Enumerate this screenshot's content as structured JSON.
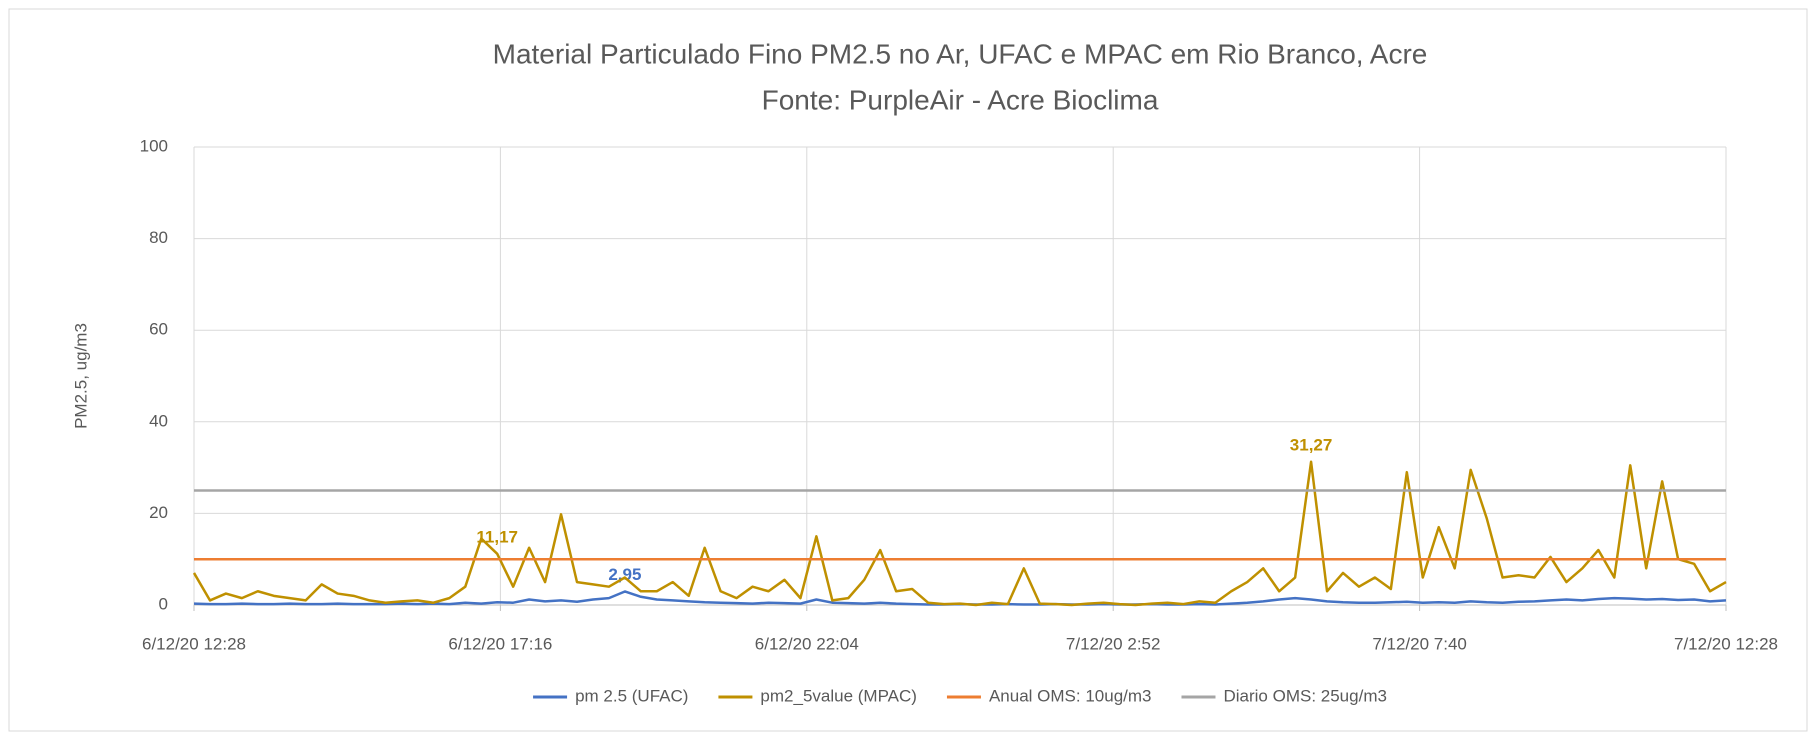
{
  "chart_data": {
    "type": "line",
    "title": "Material Particulado Fino PM2.5 no Ar,  UFAC e  MPAC em Rio Branco, Acre",
    "subtitle": "Fonte: PurpleAir - Acre Bioclima",
    "y_label": "PM2.5, ug/m3",
    "x": [
      "2020-12-06 12:28",
      "2020-12-06 12:43",
      "2020-12-06 12:58",
      "2020-12-06 13:13",
      "2020-12-06 13:28",
      "2020-12-06 13:43",
      "2020-12-06 13:58",
      "2020-12-06 14:13",
      "2020-12-06 14:28",
      "2020-12-06 14:43",
      "2020-12-06 14:58",
      "2020-12-06 15:13",
      "2020-12-06 15:28",
      "2020-12-06 15:43",
      "2020-12-06 15:58",
      "2020-12-06 16:13",
      "2020-12-06 16:28",
      "2020-12-06 16:43",
      "2020-12-06 16:58",
      "2020-12-06 17:13",
      "2020-12-06 17:28",
      "2020-12-06 17:43",
      "2020-12-06 17:58",
      "2020-12-06 18:13",
      "2020-12-06 18:28",
      "2020-12-06 18:43",
      "2020-12-06 18:58",
      "2020-12-06 19:13",
      "2020-12-06 19:28",
      "2020-12-06 19:43",
      "2020-12-06 19:58",
      "2020-12-06 20:13",
      "2020-12-06 20:28",
      "2020-12-06 20:43",
      "2020-12-06 20:58",
      "2020-12-06 21:13",
      "2020-12-06 21:28",
      "2020-12-06 21:43",
      "2020-12-06 21:58",
      "2020-12-06 22:13",
      "2020-12-06 22:28",
      "2020-12-06 22:43",
      "2020-12-06 22:58",
      "2020-12-06 23:13",
      "2020-12-06 23:28",
      "2020-12-06 23:43",
      "2020-12-06 23:58",
      "2020-12-07 00:13",
      "2020-12-07 00:28",
      "2020-12-07 00:43",
      "2020-12-07 00:58",
      "2020-12-07 01:13",
      "2020-12-07 01:28",
      "2020-12-07 01:43",
      "2020-12-07 01:58",
      "2020-12-07 02:13",
      "2020-12-07 02:28",
      "2020-12-07 02:43",
      "2020-12-07 02:58",
      "2020-12-07 03:13",
      "2020-12-07 03:28",
      "2020-12-07 03:43",
      "2020-12-07 03:58",
      "2020-12-07 04:13",
      "2020-12-07 04:28",
      "2020-12-07 04:43",
      "2020-12-07 04:58",
      "2020-12-07 05:13",
      "2020-12-07 05:28",
      "2020-12-07 05:43",
      "2020-12-07 05:58",
      "2020-12-07 06:13",
      "2020-12-07 06:28",
      "2020-12-07 06:43",
      "2020-12-07 06:58",
      "2020-12-07 07:13",
      "2020-12-07 07:28",
      "2020-12-07 07:43",
      "2020-12-07 07:58",
      "2020-12-07 08:13",
      "2020-12-07 08:28",
      "2020-12-07 08:43",
      "2020-12-07 08:58",
      "2020-12-07 09:13",
      "2020-12-07 09:28",
      "2020-12-07 09:43",
      "2020-12-07 09:58",
      "2020-12-07 10:13",
      "2020-12-07 10:28",
      "2020-12-07 10:43",
      "2020-12-07 10:58",
      "2020-12-07 11:13",
      "2020-12-07 11:28",
      "2020-12-07 11:43",
      "2020-12-07 11:58",
      "2020-12-07 12:13",
      "2020-12-07 12:28"
    ],
    "series": [
      {
        "name": "pm 2.5 (UFAC)",
        "color": "#4472c4",
        "values": [
          0.3,
          0.2,
          0.2,
          0.3,
          0.2,
          0.2,
          0.3,
          0.2,
          0.2,
          0.3,
          0.2,
          0.2,
          0.2,
          0.3,
          0.2,
          0.3,
          0.2,
          0.5,
          0.3,
          0.6,
          0.5,
          1.2,
          0.8,
          1,
          0.7,
          1.2,
          1.5,
          2.95,
          1.8,
          1.2,
          1,
          0.8,
          0.6,
          0.5,
          0.4,
          0.3,
          0.5,
          0.4,
          0.3,
          1.2,
          0.5,
          0.4,
          0.3,
          0.5,
          0.3,
          0.2,
          0.1,
          0.1,
          0.2,
          0.1,
          0.1,
          0.2,
          0.1,
          0.1,
          0.2,
          0.1,
          0.1,
          0.2,
          0.1,
          0.1,
          0.2,
          0.1,
          0.1,
          0.2,
          0.1,
          0.3,
          0.5,
          0.8,
          1.2,
          1.5,
          1.2,
          0.8,
          0.6,
          0.5,
          0.5,
          0.6,
          0.7,
          0.5,
          0.6,
          0.5,
          0.8,
          0.6,
          0.5,
          0.7,
          0.8,
          1,
          1.2,
          1,
          1.3,
          1.5,
          1.4,
          1.2,
          1.3,
          1.1,
          1.2,
          0.8,
          1
        ],
        "value_labels": {
          "27": "2,95"
        }
      },
      {
        "name": "pm2_5value (MPAC)",
        "color": "#bf9000",
        "values": [
          7,
          1,
          2.5,
          1.5,
          3,
          2,
          1.5,
          1,
          4.5,
          2.5,
          2,
          1,
          0.5,
          0.8,
          1,
          0.5,
          1.5,
          4,
          14.5,
          11.17,
          4,
          12.5,
          5,
          19.8,
          5,
          4.5,
          4,
          6,
          3,
          3,
          5,
          2,
          12.5,
          3,
          1.5,
          4,
          3,
          5.5,
          1.5,
          15,
          1,
          1.5,
          5.5,
          12,
          3,
          3.5,
          0.5,
          0.2,
          0.3,
          0,
          0.5,
          0.2,
          8,
          0.3,
          0.2,
          0,
          0.3,
          0.5,
          0.2,
          0,
          0.3,
          0.5,
          0.2,
          0.8,
          0.5,
          3,
          5,
          8,
          3,
          6,
          31.27,
          3,
          7,
          4,
          6,
          3.5,
          29,
          6,
          17,
          8,
          29.5,
          19,
          6,
          6.5,
          6,
          10.5,
          5,
          8,
          12,
          6,
          30.5,
          8,
          27,
          10,
          9,
          3,
          5
        ],
        "value_labels": {
          "19": "11,17",
          "70": "31,27"
        }
      },
      {
        "name": "Anual OMS: 10ug/m3",
        "color": "#ed7d31",
        "x": [
          "2020-12-06 12:28",
          "2020-12-07 12:28"
        ],
        "values": [
          10,
          10
        ]
      },
      {
        "name": "Diario OMS: 25ug/m3",
        "color": "#a5a5a5",
        "x": [
          "2020-12-06 12:28",
          "2020-12-07 12:28"
        ],
        "values": [
          25,
          25
        ]
      }
    ],
    "xlim": [
      "2020-12-06 12:28",
      "2020-12-07 12:28"
    ],
    "xticks": [
      {
        "value": "2020-12-06 12:28",
        "label": "6/12/20 12:28"
      },
      {
        "value": "2020-12-06 17:16",
        "label": "6/12/20 17:16"
      },
      {
        "value": "2020-12-06 22:04",
        "label": "6/12/20 22:04"
      },
      {
        "value": "2020-12-07 02:52",
        "label": "7/12/20 2:52"
      },
      {
        "value": "2020-12-07 07:40",
        "label": "7/12/20 7:40"
      },
      {
        "value": "2020-12-07 12:28",
        "label": "7/12/20 12:28"
      }
    ],
    "ylim": [
      0,
      100
    ],
    "yticks": [
      0,
      20,
      40,
      60,
      80,
      100
    ],
    "grid": true,
    "legend": "bottom"
  }
}
